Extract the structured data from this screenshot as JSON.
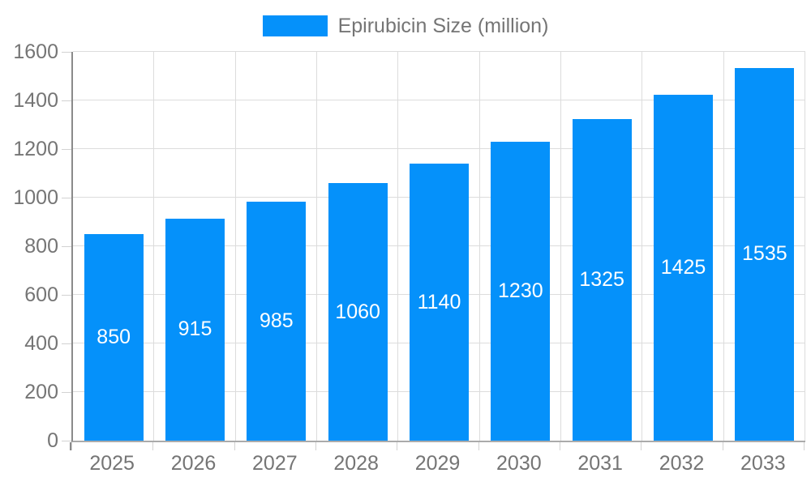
{
  "legend": {
    "label": "Epirubicin Size (million)"
  },
  "colors": {
    "bar": "#0591fa",
    "bar_label": "#ffffff",
    "axis_y": "#8a8a8a",
    "axis_x": "#ababab",
    "gridline": "#dcdcdc",
    "tick": "#d2d2d2",
    "label_text": "#757575",
    "background": "#ffffff"
  },
  "chart_data": {
    "type": "bar",
    "title": "Epirubicin Size (million)",
    "categories": [
      "2025",
      "2026",
      "2027",
      "2028",
      "2029",
      "2030",
      "2031",
      "2032",
      "2033"
    ],
    "values": [
      850,
      915,
      985,
      1060,
      1140,
      1230,
      1325,
      1425,
      1535
    ],
    "series": [
      {
        "name": "Epirubicin Size (million)",
        "values": [
          850,
          915,
          985,
          1060,
          1140,
          1230,
          1325,
          1425,
          1535
        ]
      }
    ],
    "xlabel": "",
    "ylabel": "",
    "ylim": [
      0,
      1600
    ],
    "ytick_interval": 200,
    "yticks": [
      0,
      200,
      400,
      600,
      800,
      1000,
      1200,
      1400,
      1600
    ],
    "grid": true,
    "legend_position": "top",
    "bar_labels_visible": true,
    "bar_label_position": "inside-center"
  }
}
